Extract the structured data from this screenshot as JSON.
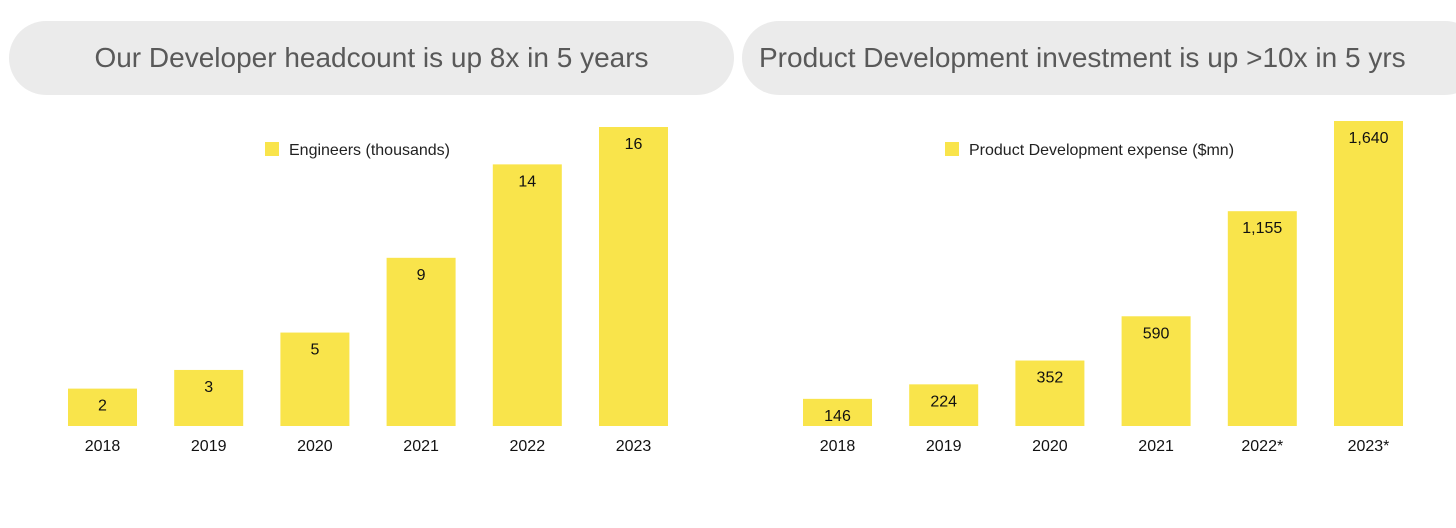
{
  "colors": {
    "bar": "#f9e44b",
    "pill": "#ebebeb",
    "title_text": "#595959"
  },
  "chart_data": [
    {
      "type": "bar",
      "title": "Our Developer headcount is up 8x in 5 years",
      "legend": "Engineers (thousands)",
      "legend_position": "top",
      "categories": [
        "2018",
        "2019",
        "2020",
        "2021",
        "2022",
        "2023"
      ],
      "values": [
        2,
        3,
        5,
        9,
        14,
        16
      ],
      "value_labels": [
        "2",
        "3",
        "5",
        "9",
        "14",
        "16"
      ],
      "grid": false
    },
    {
      "type": "bar",
      "title": "Product Development investment is up >10x in 5 yrs",
      "legend": "Product Development expense ($mn)",
      "legend_position": "top",
      "categories": [
        "2018",
        "2019",
        "2020",
        "2021",
        "2022*",
        "2023*"
      ],
      "values": [
        146,
        224,
        352,
        590,
        1155,
        1640
      ],
      "value_labels": [
        "146",
        "224",
        "352",
        "590",
        "1,155",
        "1,640"
      ],
      "grid": false
    }
  ]
}
